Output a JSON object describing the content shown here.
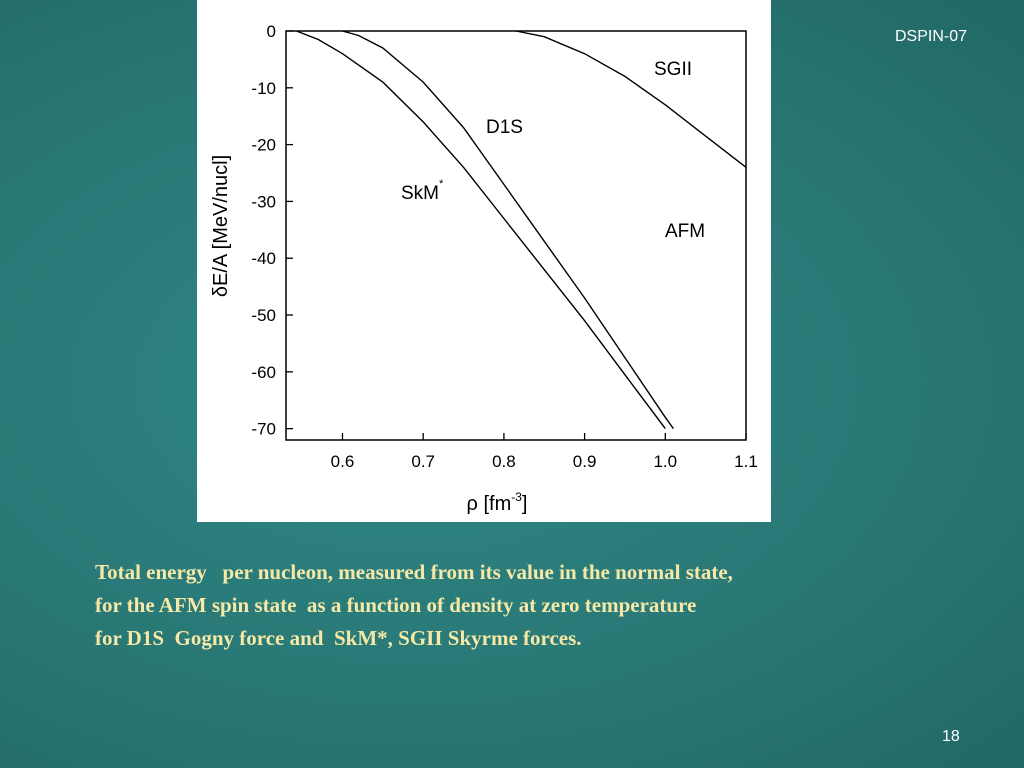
{
  "chart_data": {
    "type": "line",
    "x_label": {
      "text": "ρ [fm",
      "sup": "-3",
      "end": "]"
    },
    "y_label": "δE/A [MeV/nucl]",
    "xlim": [
      0.53,
      1.1
    ],
    "ylim": [
      -72,
      0
    ],
    "xticks": [
      0.6,
      0.7,
      0.8,
      0.9,
      {
        "value": 1,
        "label": "1.0"
      },
      1.1
    ],
    "yticks": [
      0,
      -10,
      -20,
      -30,
      -40,
      -50,
      -60,
      -70
    ],
    "series": [
      {
        "color": "#000000",
        "x": [
          0.543,
          0.57,
          0.6,
          0.65,
          0.7,
          0.75,
          0.8,
          0.85,
          0.9,
          0.95,
          1.0
        ],
        "values": [
          0,
          -1.5,
          -4,
          -9,
          -16,
          -24,
          -33,
          -42,
          -51,
          -60.5,
          -70
        ]
      },
      {
        "color": "#000000",
        "x": [
          0.6,
          0.62,
          0.65,
          0.7,
          0.75,
          0.8,
          0.85,
          0.9,
          0.95,
          1.0,
          1.01
        ],
        "values": [
          0,
          -0.8,
          -3,
          -9,
          -17,
          -27,
          -37,
          -47,
          -57.5,
          -68,
          -70
        ]
      },
      {
        "color": "#000000",
        "x": [
          0.815,
          0.85,
          0.9,
          0.95,
          1.0,
          1.05,
          1.1
        ],
        "values": [
          0,
          -1,
          -4,
          -8,
          -13,
          -18.5,
          -24
        ]
      }
    ],
    "annotations": [
      {
        "text": "SGII"
      },
      {
        "text": "D1S"
      },
      {
        "text": "SkM",
        "sup": "*"
      },
      {
        "text": "AFM"
      }
    ]
  },
  "slide": {
    "tag": "DSPIN-07",
    "number": "18",
    "caption": [
      "Total energy   per nucleon, measured from its value in the normal state,",
      "for the AFM spin state  as a function of density at zero temperature",
      "for D1S  Gogny force and  SkM*, SGII Skyrme forces."
    ]
  }
}
